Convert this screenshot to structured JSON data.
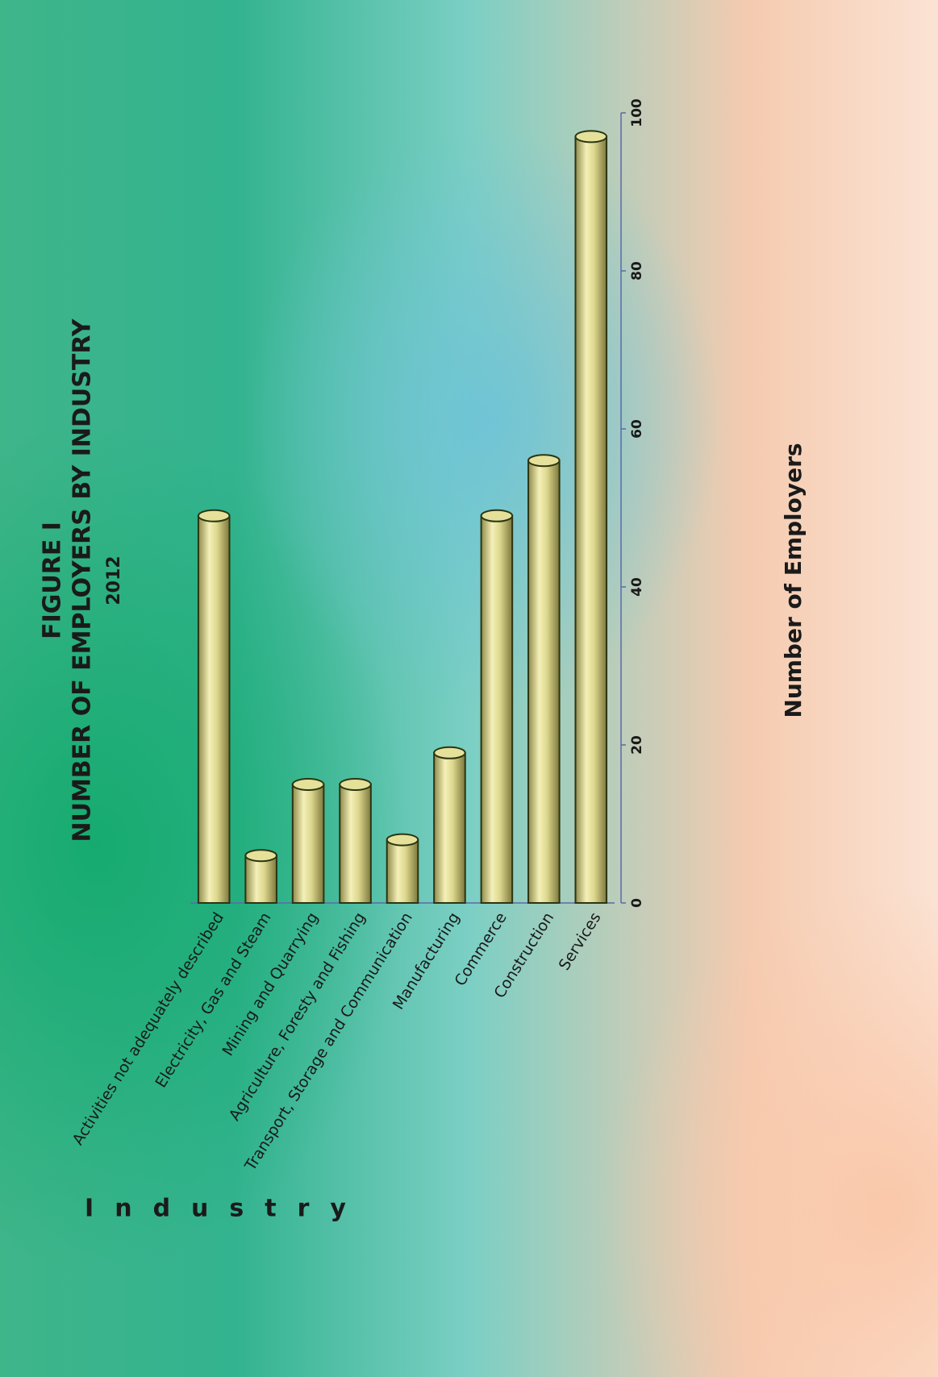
{
  "chart_data": {
    "type": "bar",
    "orientation": "horizontal",
    "title": "FIGURE I",
    "subtitle": "NUMBER OF EMPLOYERS BY INDUSTRY",
    "year": "2012",
    "x_label": "Number of Employers",
    "y_label": "Industry",
    "categories": [
      "Activities not adequately described",
      "Electricity, Gas and Steam",
      "Mining and Quarrying",
      "Agriculture, Foresty and Fishing",
      "Transport, Storage and Communication",
      "Manufacturing",
      "Commerce",
      "Construction",
      "Services"
    ],
    "values": [
      49,
      6,
      15,
      15,
      8,
      19,
      49,
      56,
      97
    ],
    "color": "#e6e19a",
    "xlim": [
      0,
      100
    ],
    "xticks": [
      0,
      20,
      40,
      60,
      80,
      100
    ]
  }
}
